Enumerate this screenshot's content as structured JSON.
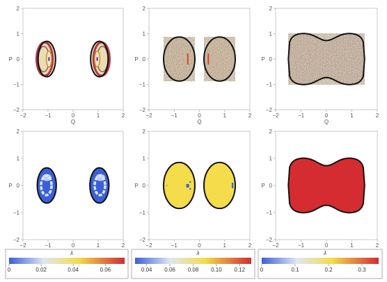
{
  "chart_data": [
    {
      "type": "scatter",
      "panel": "row1-col1",
      "xlabel": "Q",
      "ylabel": "P",
      "xlim": [
        -2,
        2
      ],
      "ylim": [
        -2,
        2
      ],
      "xticks": [
        "−2",
        "−1",
        "0",
        "1",
        "2"
      ],
      "yticks": [
        "2",
        "1",
        "0",
        "−1",
        "−2"
      ],
      "regions": [
        {
          "shape": "two ovals",
          "centers": [
            [
              -1.05,
              0
            ],
            [
              1.05,
              0
            ]
          ],
          "half_width": 0.35,
          "half_height": 0.7,
          "fill": "patterned (cream, brown, red, purple rings)"
        }
      ]
    },
    {
      "type": "scatter",
      "panel": "row1-col2",
      "xlabel": "Q",
      "ylabel": "P",
      "xlim": [
        -2,
        2
      ],
      "ylim": [
        -2,
        2
      ],
      "xticks": [
        "−2",
        "−1",
        "0",
        "1",
        "2"
      ],
      "yticks": [
        "2",
        "1",
        "0",
        "−1",
        "−2"
      ],
      "regions": [
        {
          "shape": "two ovals",
          "centers": [
            [
              -0.8,
              0
            ],
            [
              0.8,
              0
            ]
          ],
          "half_width": 0.62,
          "half_height": 0.87,
          "fill": "multicolor noise"
        }
      ]
    },
    {
      "type": "scatter",
      "panel": "row1-col3",
      "xlabel": "Q",
      "ylabel": "P",
      "xlim": [
        -2,
        2
      ],
      "ylim": [
        -2,
        2
      ],
      "xticks": [
        "−2",
        "−1",
        "0",
        "1",
        "2"
      ],
      "yticks": [
        "2",
        "1",
        "0",
        "−1",
        "−2"
      ],
      "regions": [
        {
          "shape": "peanut",
          "x_extent": [
            -1.5,
            1.5
          ],
          "p_lobe": 1.03,
          "p_waist": 0.73,
          "fill": "multicolor noise"
        }
      ]
    },
    {
      "type": "heatmap",
      "panel": "row2-col1",
      "xlabel": "Q",
      "ylabel": "P",
      "xlim": [
        -2,
        2
      ],
      "ylim": [
        -2,
        2
      ],
      "xticks": [
        "−2",
        "−1",
        "0",
        "1",
        "2"
      ],
      "yticks": [
        "2",
        "1",
        "0",
        "−1",
        "−2"
      ],
      "colorbar_label": "λ",
      "colorbar_ticks": [
        "0",
        "0.02",
        "0.04",
        "0.06"
      ],
      "colorbar_range": [
        0,
        0.072
      ],
      "regions": [
        {
          "shape": "two ovals",
          "centers": [
            [
              -1.05,
              0
            ],
            [
              1.05,
              0
            ]
          ],
          "half_width": 0.38,
          "half_height": 0.65,
          "dominant_lambda": 0.001
        }
      ]
    },
    {
      "type": "heatmap",
      "panel": "row2-col2",
      "xlabel": "Q",
      "ylabel": "P",
      "xlim": [
        -2,
        2
      ],
      "ylim": [
        -2,
        2
      ],
      "xticks": [
        "−2",
        "−1",
        "0",
        "1",
        "2"
      ],
      "yticks": [
        "2",
        "1",
        "0",
        "−1",
        "−2"
      ],
      "colorbar_label": "λ",
      "colorbar_ticks": [
        "0.04",
        "0.06",
        "0.08",
        "0.10",
        "0.12"
      ],
      "colorbar_range": [
        0.03,
        0.13
      ],
      "regions": [
        {
          "shape": "two ovals",
          "centers": [
            [
              -0.8,
              0
            ],
            [
              0.8,
              0
            ]
          ],
          "half_width": 0.62,
          "half_height": 0.85,
          "dominant_lambda": 0.1
        }
      ]
    },
    {
      "type": "heatmap",
      "panel": "row2-col3",
      "xlabel": "Q",
      "ylabel": "P",
      "xlim": [
        -2,
        2
      ],
      "ylim": [
        -2,
        2
      ],
      "xticks": [
        "−2",
        "−1",
        "0",
        "1",
        "2"
      ],
      "yticks": [
        "2",
        "1",
        "0",
        "−1",
        "−2"
      ],
      "colorbar_label": "λ",
      "colorbar_ticks": [
        "0",
        "0.1",
        "0.2",
        "0.3"
      ],
      "colorbar_range": [
        0,
        0.35
      ],
      "regions": [
        {
          "shape": "peanut",
          "x_extent": [
            -1.5,
            1.5
          ],
          "p_lobe": 1.03,
          "p_waist": 0.73,
          "dominant_lambda": 0.33
        }
      ]
    }
  ],
  "colors": {
    "frame": "#bbbbbb",
    "outline": "#111111",
    "blue": "#3b5fd8",
    "light": "#dfe6f3",
    "yellow": "#f4dc4a",
    "red": "#d52c32"
  }
}
